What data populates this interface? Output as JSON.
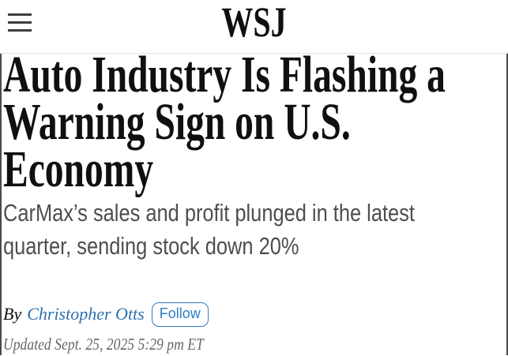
{
  "header": {
    "menu_icon": "hamburger-icon",
    "logo": "WSJ"
  },
  "article": {
    "headline": "Auto Industry Is Flashing a\nWarning Sign on U.S.\nEconomy",
    "dek": "CarMax’s sales and profit plunged in the latest\nquarter, sending stock down 20%",
    "byline": {
      "prefix": "By",
      "author": "Christopher Otts",
      "follow_label": "Follow"
    },
    "timestamp": "Updated Sept. 25, 2025 5:29 pm ET"
  },
  "colors": {
    "headline": "#101010",
    "dek_gray": "#4e4e50",
    "link_blue": "#2e6fad",
    "follow_blue": "#2e7cc3",
    "timestamp_gray": "#67676a",
    "divider": "#e3e3e3",
    "edge_border": "#4a4a4a"
  }
}
